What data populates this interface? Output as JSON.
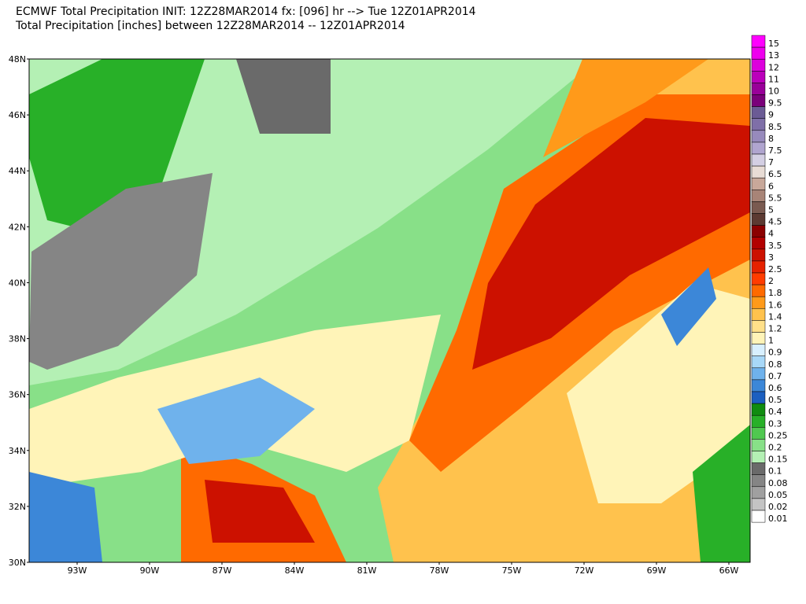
{
  "header": {
    "line1": "ECMWF Total Precipitation INIT: 12Z28MAR2014 fx: [096] hr --> Tue 12Z01APR2014",
    "line2": "Total Precipitation [inches] between 12Z28MAR2014 -- 12Z01APR2014"
  },
  "latitude_labels": [
    "48N",
    "46N",
    "44N",
    "42N",
    "40N",
    "38N",
    "36N",
    "34N",
    "32N",
    "30N"
  ],
  "longitude_labels": [
    "93W",
    "90W",
    "87W",
    "84W",
    "81W",
    "78W",
    "75W",
    "72W",
    "69W",
    "66W"
  ],
  "colorbar": {
    "levels": [
      {
        "label": "15",
        "color": "#ff00ff"
      },
      {
        "label": "13",
        "color": "#ee00ee"
      },
      {
        "label": "12",
        "color": "#dd00dd"
      },
      {
        "label": "11",
        "color": "#bb00bb"
      },
      {
        "label": "10",
        "color": "#990099"
      },
      {
        "label": "9.5",
        "color": "#7a007a"
      },
      {
        "label": "9",
        "color": "#6b5b95"
      },
      {
        "label": "8.5",
        "color": "#7f6fa8"
      },
      {
        "label": "8",
        "color": "#978abc"
      },
      {
        "label": "7.5",
        "color": "#b0a5cf"
      },
      {
        "label": "7",
        "color": "#d4cfe3"
      },
      {
        "label": "6.5",
        "color": "#e8dcd5"
      },
      {
        "label": "6",
        "color": "#c8a89a"
      },
      {
        "label": "5.5",
        "color": "#a88477"
      },
      {
        "label": "5",
        "color": "#7a5a50"
      },
      {
        "label": "4.5",
        "color": "#5c3a32"
      },
      {
        "label": "4",
        "color": "#8b0000"
      },
      {
        "label": "3.5",
        "color": "#b20000"
      },
      {
        "label": "3",
        "color": "#cc1100"
      },
      {
        "label": "2.5",
        "color": "#e62200"
      },
      {
        "label": "2",
        "color": "#ff3c00"
      },
      {
        "label": "1.8",
        "color": "#ff6a00"
      },
      {
        "label": "1.6",
        "color": "#ff9a1a"
      },
      {
        "label": "1.4",
        "color": "#ffc24d"
      },
      {
        "label": "1.2",
        "color": "#ffe08a"
      },
      {
        "label": "1",
        "color": "#fff4b8"
      },
      {
        "label": "0.9",
        "color": "#d8f0ff"
      },
      {
        "label": "0.8",
        "color": "#a8d8f8"
      },
      {
        "label": "0.7",
        "color": "#6fb2ec"
      },
      {
        "label": "0.6",
        "color": "#3c87d8"
      },
      {
        "label": "0.5",
        "color": "#1c5fc0"
      },
      {
        "label": "0.4",
        "color": "#108c10"
      },
      {
        "label": "0.3",
        "color": "#28b028"
      },
      {
        "label": "0.25",
        "color": "#50c850"
      },
      {
        "label": "0.2",
        "color": "#88e088"
      },
      {
        "label": "0.15",
        "color": "#b4f0b4"
      },
      {
        "label": "0.1",
        "color": "#6a6a6a"
      },
      {
        "label": "0.08",
        "color": "#858585"
      },
      {
        "label": "0.05",
        "color": "#a0a0a0"
      },
      {
        "label": "0.02",
        "color": "#c4c4c4"
      },
      {
        "label": "0.01",
        "color": "#ffffff"
      }
    ]
  }
}
